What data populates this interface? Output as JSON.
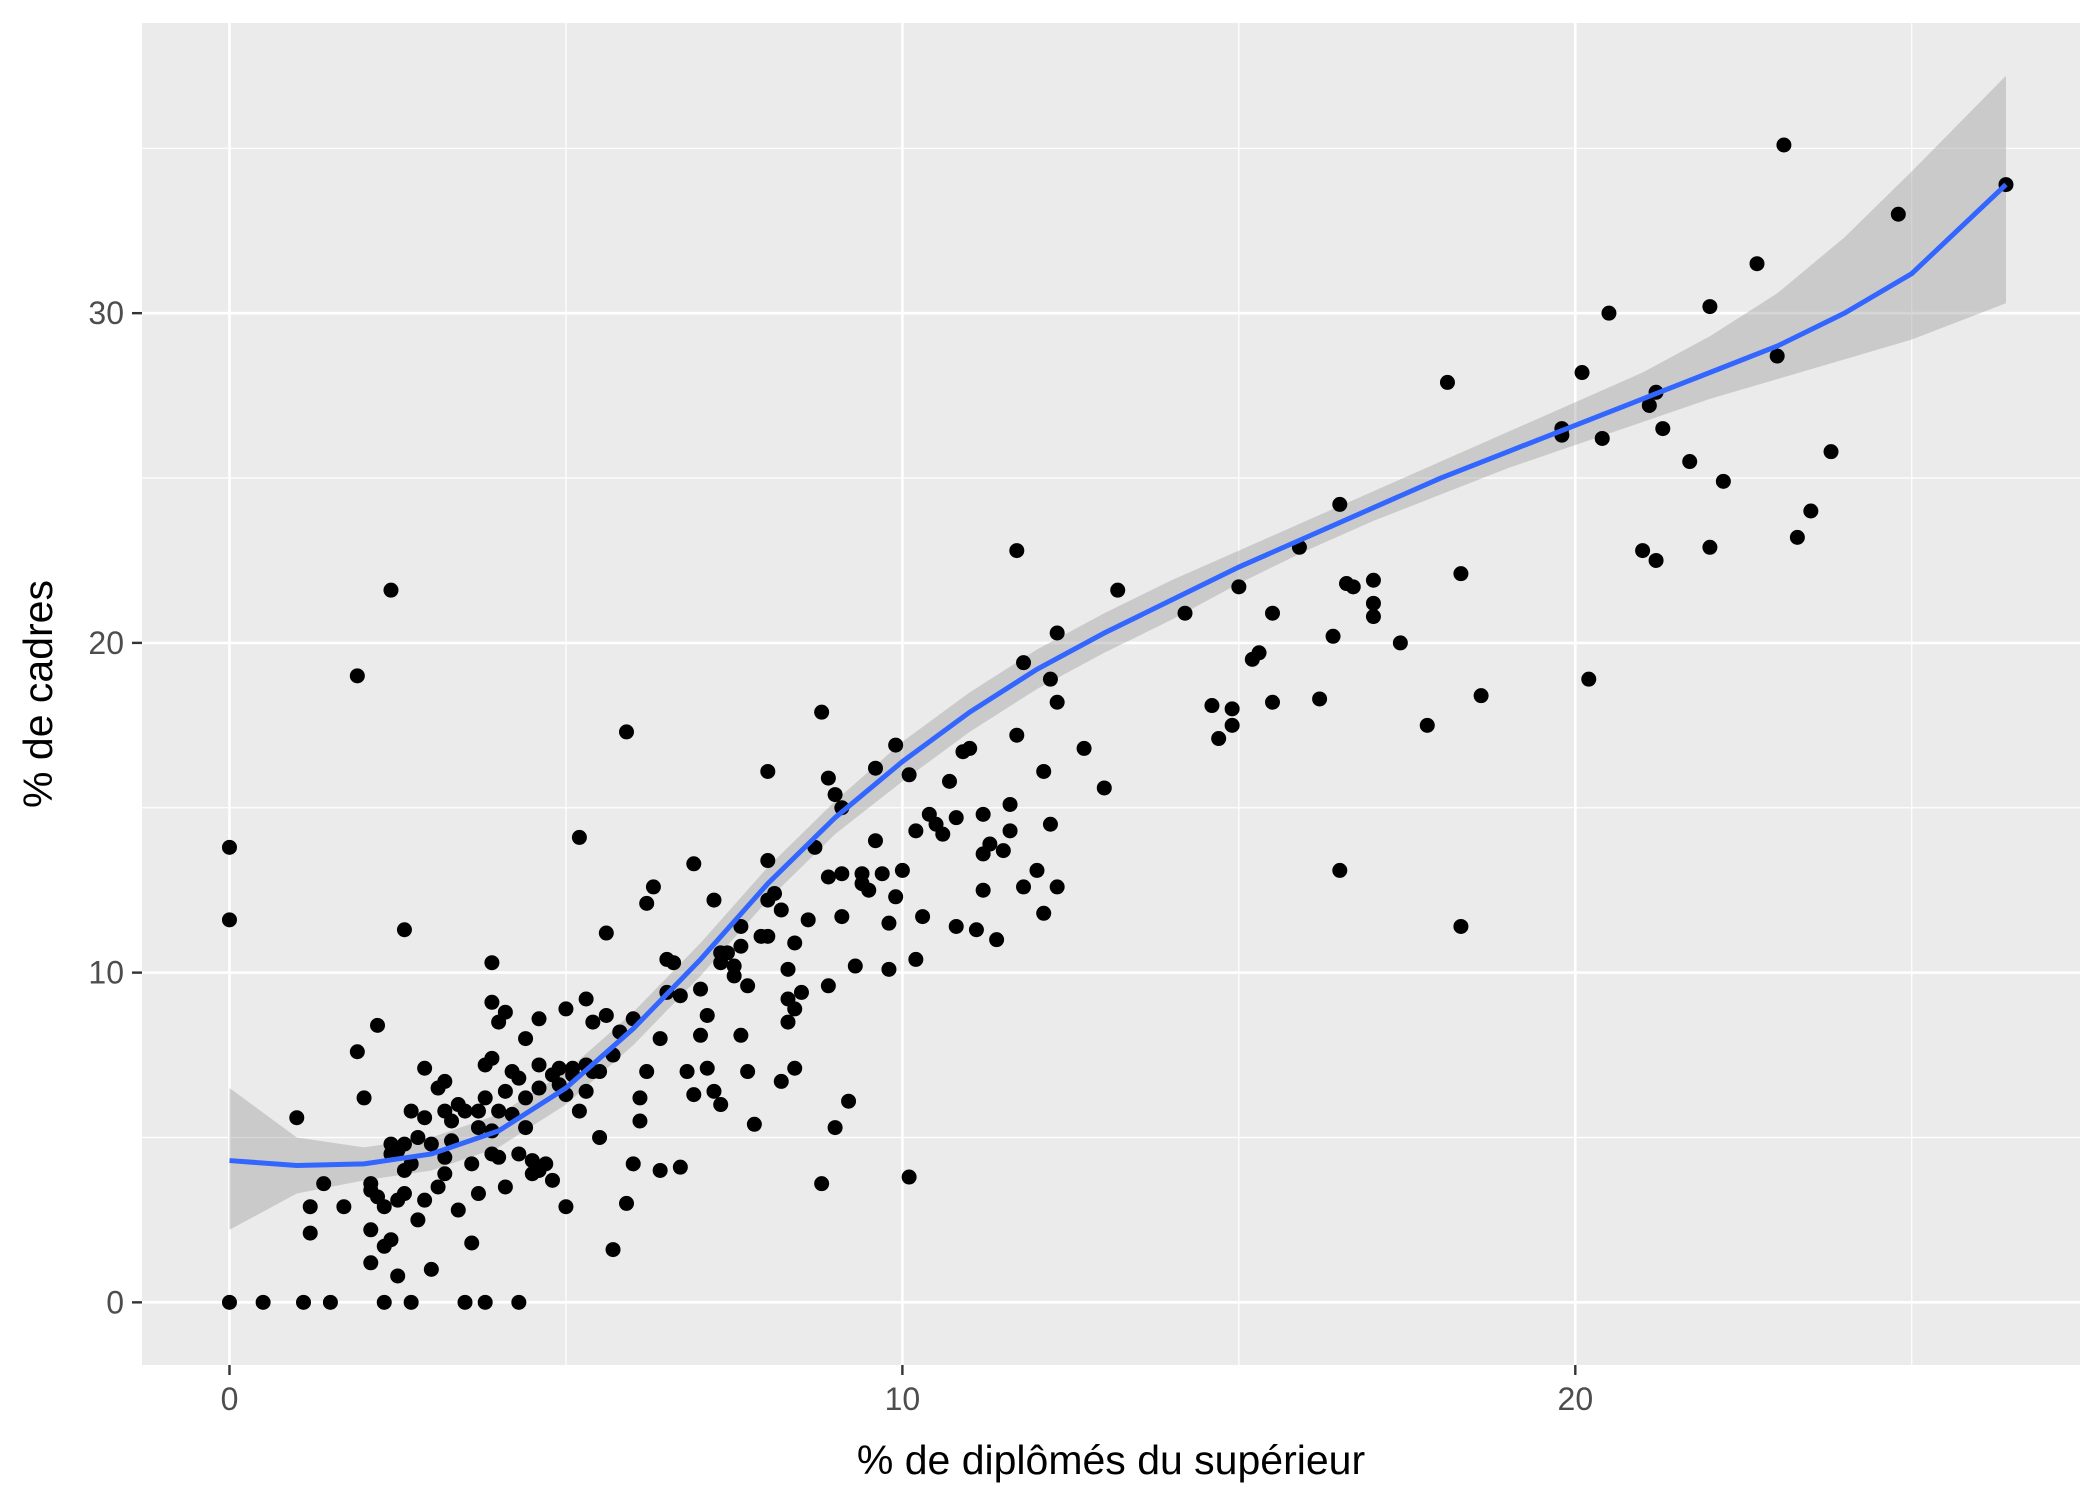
{
  "chart_data": {
    "type": "scatter",
    "title": "",
    "xlabel": "% de diplômés du supérieur",
    "ylabel": "% de cadres",
    "xlim": [
      -1.3,
      27.5
    ],
    "ylim": [
      -1.9,
      38.8
    ],
    "x_ticks": [
      0,
      10,
      20
    ],
    "y_ticks": [
      0,
      10,
      20,
      30
    ],
    "x_tick_labels": [
      "0",
      "10",
      "20"
    ],
    "y_tick_labels": [
      "0",
      "10",
      "20",
      "30"
    ],
    "grid": true,
    "legend": "none",
    "colors": {
      "panel": "#ebebeb",
      "grid_major": "#ffffff",
      "points": "#000000",
      "smooth_line": "#3366ff",
      "confidence_band": "#999999"
    },
    "points": [
      [
        0.0,
        13.8
      ],
      [
        0.0,
        11.6
      ],
      [
        0.0,
        0.0
      ],
      [
        0.5,
        0.0
      ],
      [
        1.0,
        5.6
      ],
      [
        1.1,
        0.0
      ],
      [
        1.2,
        2.1
      ],
      [
        1.2,
        2.9
      ],
      [
        1.4,
        3.6
      ],
      [
        1.5,
        0.0
      ],
      [
        1.7,
        2.9
      ],
      [
        1.9,
        7.6
      ],
      [
        1.9,
        19.0
      ],
      [
        2.0,
        6.2
      ],
      [
        2.1,
        3.6
      ],
      [
        2.1,
        3.4
      ],
      [
        2.1,
        2.2
      ],
      [
        2.1,
        1.2
      ],
      [
        2.2,
        8.4
      ],
      [
        2.2,
        3.2
      ],
      [
        2.3,
        0.0
      ],
      [
        2.3,
        1.7
      ],
      [
        2.3,
        2.9
      ],
      [
        2.4,
        21.6
      ],
      [
        2.4,
        4.8
      ],
      [
        2.4,
        4.5
      ],
      [
        2.4,
        1.9
      ],
      [
        2.5,
        0.8
      ],
      [
        2.5,
        3.1
      ],
      [
        2.5,
        4.6
      ],
      [
        2.6,
        11.3
      ],
      [
        2.6,
        4.8
      ],
      [
        2.6,
        4.0
      ],
      [
        2.6,
        3.3
      ],
      [
        2.7,
        5.8
      ],
      [
        2.7,
        4.2
      ],
      [
        2.7,
        0.0
      ],
      [
        2.8,
        5.0
      ],
      [
        2.8,
        2.5
      ],
      [
        2.9,
        7.1
      ],
      [
        2.9,
        5.6
      ],
      [
        2.9,
        3.1
      ],
      [
        3.0,
        4.8
      ],
      [
        3.0,
        1.0
      ],
      [
        3.1,
        6.5
      ],
      [
        3.1,
        3.5
      ],
      [
        3.2,
        6.7
      ],
      [
        3.2,
        5.8
      ],
      [
        3.2,
        4.4
      ],
      [
        3.2,
        3.9
      ],
      [
        3.3,
        5.5
      ],
      [
        3.3,
        4.9
      ],
      [
        3.4,
        6.0
      ],
      [
        3.4,
        2.8
      ],
      [
        3.5,
        0.0
      ],
      [
        3.5,
        5.8
      ],
      [
        3.6,
        4.2
      ],
      [
        3.6,
        1.8
      ],
      [
        3.7,
        5.8
      ],
      [
        3.7,
        5.3
      ],
      [
        3.7,
        3.3
      ],
      [
        3.8,
        7.2
      ],
      [
        3.8,
        6.2
      ],
      [
        3.8,
        0.0
      ],
      [
        3.9,
        7.4
      ],
      [
        3.9,
        5.2
      ],
      [
        3.9,
        4.5
      ],
      [
        3.9,
        10.3
      ],
      [
        3.9,
        9.1
      ],
      [
        4.0,
        8.5
      ],
      [
        4.0,
        5.8
      ],
      [
        4.0,
        4.4
      ],
      [
        4.1,
        6.4
      ],
      [
        4.1,
        3.5
      ],
      [
        4.1,
        8.8
      ],
      [
        4.2,
        7.0
      ],
      [
        4.2,
        5.7
      ],
      [
        4.3,
        6.8
      ],
      [
        4.3,
        4.5
      ],
      [
        4.3,
        0.0
      ],
      [
        4.4,
        8.0
      ],
      [
        4.4,
        6.2
      ],
      [
        4.4,
        5.3
      ],
      [
        4.5,
        4.3
      ],
      [
        4.5,
        3.9
      ],
      [
        4.6,
        8.6
      ],
      [
        4.6,
        7.2
      ],
      [
        4.6,
        6.5
      ],
      [
        4.6,
        4.0
      ],
      [
        4.7,
        4.2
      ],
      [
        4.8,
        6.9
      ],
      [
        4.8,
        3.7
      ],
      [
        4.9,
        7.1
      ],
      [
        4.9,
        6.6
      ],
      [
        5.0,
        2.9
      ],
      [
        5.0,
        6.3
      ],
      [
        5.0,
        8.9
      ],
      [
        5.1,
        7.1
      ],
      [
        5.1,
        6.9
      ],
      [
        5.2,
        14.1
      ],
      [
        5.2,
        5.8
      ],
      [
        5.3,
        7.2
      ],
      [
        5.3,
        9.2
      ],
      [
        5.3,
        6.4
      ],
      [
        5.4,
        8.5
      ],
      [
        5.4,
        7.0
      ],
      [
        5.5,
        5.0
      ],
      [
        5.5,
        7.0
      ],
      [
        5.6,
        8.7
      ],
      [
        5.6,
        11.2
      ],
      [
        5.7,
        1.6
      ],
      [
        5.7,
        7.5
      ],
      [
        5.8,
        8.2
      ],
      [
        5.9,
        17.3
      ],
      [
        5.9,
        3.0
      ],
      [
        6.0,
        8.6
      ],
      [
        6.0,
        4.2
      ],
      [
        6.1,
        5.5
      ],
      [
        6.1,
        6.2
      ],
      [
        6.2,
        7.0
      ],
      [
        6.2,
        12.1
      ],
      [
        6.3,
        12.6
      ],
      [
        6.4,
        8.0
      ],
      [
        6.4,
        4.0
      ],
      [
        6.5,
        10.4
      ],
      [
        6.5,
        9.4
      ],
      [
        6.6,
        10.3
      ],
      [
        6.7,
        9.3
      ],
      [
        6.7,
        4.1
      ],
      [
        6.8,
        7.0
      ],
      [
        6.9,
        6.3
      ],
      [
        6.9,
        13.3
      ],
      [
        7.0,
        9.5
      ],
      [
        7.0,
        8.1
      ],
      [
        7.1,
        8.7
      ],
      [
        7.1,
        7.1
      ],
      [
        7.2,
        6.4
      ],
      [
        7.2,
        12.2
      ],
      [
        7.3,
        10.6
      ],
      [
        7.3,
        10.3
      ],
      [
        7.3,
        6.0
      ],
      [
        7.4,
        10.6
      ],
      [
        7.5,
        9.9
      ],
      [
        7.5,
        10.2
      ],
      [
        7.6,
        10.8
      ],
      [
        7.6,
        11.4
      ],
      [
        7.6,
        8.1
      ],
      [
        7.7,
        7.0
      ],
      [
        7.7,
        9.6
      ],
      [
        7.8,
        5.4
      ],
      [
        7.9,
        11.1
      ],
      [
        8.0,
        13.4
      ],
      [
        8.0,
        12.2
      ],
      [
        8.0,
        16.1
      ],
      [
        8.0,
        11.1
      ],
      [
        8.1,
        12.4
      ],
      [
        8.2,
        11.9
      ],
      [
        8.2,
        6.7
      ],
      [
        8.3,
        8.5
      ],
      [
        8.3,
        9.2
      ],
      [
        8.3,
        10.1
      ],
      [
        8.4,
        10.9
      ],
      [
        8.4,
        7.1
      ],
      [
        8.4,
        8.9
      ],
      [
        8.5,
        9.4
      ],
      [
        8.6,
        11.6
      ],
      [
        8.7,
        13.8
      ],
      [
        8.8,
        17.9
      ],
      [
        8.8,
        3.6
      ],
      [
        8.9,
        15.9
      ],
      [
        8.9,
        12.9
      ],
      [
        8.9,
        9.6
      ],
      [
        9.0,
        5.3
      ],
      [
        9.0,
        15.4
      ],
      [
        9.1,
        15.0
      ],
      [
        9.1,
        11.7
      ],
      [
        9.1,
        13.0
      ],
      [
        9.2,
        6.1
      ],
      [
        9.3,
        10.2
      ],
      [
        9.4,
        13.0
      ],
      [
        9.4,
        12.7
      ],
      [
        9.5,
        12.5
      ],
      [
        9.6,
        14.0
      ],
      [
        9.6,
        16.2
      ],
      [
        9.7,
        13.0
      ],
      [
        9.8,
        11.5
      ],
      [
        9.8,
        10.1
      ],
      [
        9.9,
        12.3
      ],
      [
        9.9,
        16.9
      ],
      [
        10.0,
        13.1
      ],
      [
        10.1,
        3.8
      ],
      [
        10.1,
        16.0
      ],
      [
        10.2,
        14.3
      ],
      [
        10.2,
        10.4
      ],
      [
        10.3,
        11.7
      ],
      [
        10.4,
        14.8
      ],
      [
        10.5,
        14.5
      ],
      [
        10.6,
        14.2
      ],
      [
        10.7,
        15.8
      ],
      [
        10.8,
        11.4
      ],
      [
        10.8,
        14.7
      ],
      [
        10.9,
        16.7
      ],
      [
        11.0,
        16.8
      ],
      [
        11.1,
        11.3
      ],
      [
        11.2,
        14.8
      ],
      [
        11.2,
        13.6
      ],
      [
        11.2,
        12.5
      ],
      [
        11.3,
        13.9
      ],
      [
        11.4,
        11.0
      ],
      [
        11.5,
        13.7
      ],
      [
        11.6,
        15.1
      ],
      [
        11.6,
        14.3
      ],
      [
        11.7,
        22.8
      ],
      [
        11.7,
        17.2
      ],
      [
        11.8,
        19.4
      ],
      [
        11.8,
        12.6
      ],
      [
        12.0,
        13.1
      ],
      [
        12.1,
        11.8
      ],
      [
        12.1,
        16.1
      ],
      [
        12.2,
        18.9
      ],
      [
        12.2,
        14.5
      ],
      [
        12.3,
        18.2
      ],
      [
        12.3,
        20.3
      ],
      [
        12.3,
        12.6
      ],
      [
        12.7,
        16.8
      ],
      [
        13.0,
        15.6
      ],
      [
        13.2,
        21.6
      ],
      [
        14.2,
        20.9
      ],
      [
        14.6,
        18.1
      ],
      [
        14.7,
        17.1
      ],
      [
        14.9,
        18.0
      ],
      [
        14.9,
        17.5
      ],
      [
        15.0,
        21.7
      ],
      [
        15.2,
        19.5
      ],
      [
        15.3,
        19.7
      ],
      [
        15.5,
        18.2
      ],
      [
        15.5,
        20.9
      ],
      [
        15.9,
        22.9
      ],
      [
        16.2,
        18.3
      ],
      [
        16.4,
        20.2
      ],
      [
        16.5,
        13.1
      ],
      [
        16.5,
        24.2
      ],
      [
        16.6,
        21.8
      ],
      [
        16.7,
        21.7
      ],
      [
        17.0,
        20.8
      ],
      [
        17.0,
        21.2
      ],
      [
        17.0,
        21.9
      ],
      [
        17.4,
        20.0
      ],
      [
        17.8,
        17.5
      ],
      [
        18.1,
        27.9
      ],
      [
        18.3,
        22.1
      ],
      [
        18.6,
        18.4
      ],
      [
        18.3,
        11.4
      ],
      [
        19.8,
        26.3
      ],
      [
        19.8,
        26.5
      ],
      [
        20.1,
        28.2
      ],
      [
        20.2,
        18.9
      ],
      [
        20.4,
        26.2
      ],
      [
        21.0,
        22.8
      ],
      [
        21.2,
        22.5
      ],
      [
        21.3,
        26.5
      ],
      [
        21.7,
        25.5
      ],
      [
        22.0,
        22.9
      ],
      [
        22.2,
        24.9
      ],
      [
        23.3,
        23.2
      ],
      [
        23.5,
        24.0
      ],
      [
        23.8,
        25.8
      ],
      [
        20.5,
        30.0
      ],
      [
        21.1,
        27.2
      ],
      [
        21.2,
        27.6
      ],
      [
        22.0,
        30.2
      ],
      [
        22.7,
        31.5
      ],
      [
        23.0,
        28.7
      ],
      [
        23.1,
        35.1
      ],
      [
        24.8,
        33.0
      ],
      [
        26.4,
        33.9
      ]
    ],
    "smooth_curve": {
      "x": [
        0.0,
        1.0,
        2.0,
        3.0,
        4.0,
        5.0,
        6.0,
        7.0,
        8.0,
        9.0,
        10.0,
        11.0,
        12.0,
        13.0,
        14.0,
        15.0,
        16.0,
        17.0,
        18.0,
        19.0,
        20.0,
        21.0,
        22.0,
        23.0,
        24.0,
        25.0,
        26.4
      ],
      "y": [
        4.3,
        4.15,
        4.2,
        4.5,
        5.2,
        6.5,
        8.3,
        10.4,
        12.7,
        14.7,
        16.4,
        17.9,
        19.2,
        20.3,
        21.3,
        22.3,
        23.2,
        24.1,
        25.0,
        25.8,
        26.6,
        27.4,
        28.2,
        29.0,
        30.0,
        31.2,
        33.9
      ],
      "lower": [
        2.2,
        3.3,
        3.7,
        4.0,
        4.7,
        6.0,
        7.8,
        9.9,
        12.2,
        14.2,
        15.8,
        17.3,
        18.6,
        19.7,
        20.7,
        21.8,
        22.8,
        23.7,
        24.5,
        25.3,
        26.0,
        26.7,
        27.4,
        28.0,
        28.6,
        29.2,
        30.3
      ],
      "upper": [
        6.5,
        5.0,
        4.7,
        5.0,
        5.7,
        7.0,
        8.8,
        10.9,
        13.2,
        15.2,
        17.0,
        18.5,
        19.8,
        20.9,
        21.9,
        22.8,
        23.7,
        24.6,
        25.5,
        26.4,
        27.3,
        28.2,
        29.3,
        30.6,
        32.3,
        34.3,
        37.2
      ]
    }
  }
}
